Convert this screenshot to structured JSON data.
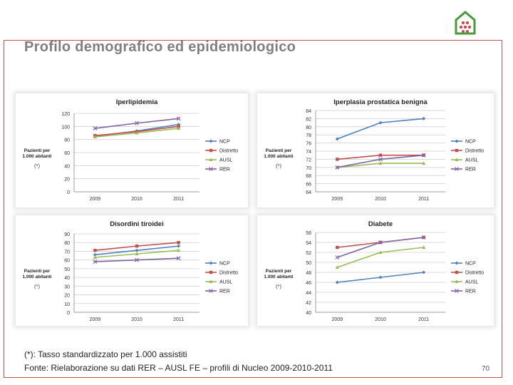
{
  "page": {
    "title": "Profilo demografico ed epidemiologico",
    "footnote1": "(*): Tasso standardizzato per 1.000 assistiti",
    "footnote2": "Fonte: Rielaborazione su dati RER – AUSL FE – profili di Nucleo 2009-2010-2011",
    "page_number": "70"
  },
  "colors": {
    "NCP": "#4f81bd",
    "Distretto": "#c0504d",
    "AUSL": "#9bbb59",
    "RER": "#8064a2",
    "frame": "#c0504d"
  },
  "logo": {
    "icon": "house-logo-icon"
  },
  "chart_data": [
    {
      "type": "line",
      "title": "Iperlipidemia",
      "ylabel": "Pazienti per 1.000 abitanti",
      "ynote": "(*)",
      "categories": [
        "2009",
        "2010",
        "2011"
      ],
      "ylim": [
        0,
        120
      ],
      "yticks": [
        0,
        20,
        40,
        60,
        80,
        100,
        120
      ],
      "series": [
        {
          "name": "NCP",
          "values": [
            85,
            93,
            103
          ]
        },
        {
          "name": "Distretto",
          "values": [
            86,
            92,
            100
          ]
        },
        {
          "name": "AUSL",
          "values": [
            84,
            90,
            97
          ]
        },
        {
          "name": "RER",
          "values": [
            97,
            105,
            112
          ]
        }
      ]
    },
    {
      "type": "line",
      "title": "Iperplasia prostatica benigna",
      "ylabel": "Pazienti per 1.000 abitanti",
      "ynote": "(*)",
      "categories": [
        "2009",
        "2010",
        "2011"
      ],
      "ylim": [
        64,
        84
      ],
      "yticks": [
        64,
        66,
        68,
        70,
        72,
        74,
        76,
        78,
        80,
        82,
        84
      ],
      "series": [
        {
          "name": "NCP",
          "values": [
            77,
            81,
            82
          ]
        },
        {
          "name": "Distretto",
          "values": [
            72,
            73,
            73
          ]
        },
        {
          "name": "AUSL",
          "values": [
            70,
            71,
            71
          ]
        },
        {
          "name": "RER",
          "values": [
            70,
            72,
            73
          ]
        }
      ]
    },
    {
      "type": "line",
      "title": "Disordini tiroidei",
      "ylabel": "Pazienti per 1.000 abitanti",
      "ynote": "(*)",
      "categories": [
        "2009",
        "2010",
        "2011"
      ],
      "ylim": [
        0,
        90
      ],
      "yticks": [
        0,
        10,
        20,
        30,
        40,
        50,
        60,
        70,
        80,
        90
      ],
      "series": [
        {
          "name": "NCP",
          "values": [
            66,
            71,
            76
          ]
        },
        {
          "name": "Distretto",
          "values": [
            71,
            76,
            80
          ]
        },
        {
          "name": "AUSL",
          "values": [
            63,
            67,
            71
          ]
        },
        {
          "name": "RER",
          "values": [
            58,
            60,
            62
          ]
        }
      ]
    },
    {
      "type": "line",
      "title": "Diabete",
      "ylabel": "Pazienti per 1.000 abitanti",
      "ynote": "(*)",
      "categories": [
        "2009",
        "2010",
        "2011"
      ],
      "ylim": [
        40,
        56
      ],
      "yticks": [
        40,
        42,
        44,
        46,
        48,
        50,
        52,
        54,
        56
      ],
      "series": [
        {
          "name": "NCP",
          "values": [
            46,
            47,
            48
          ]
        },
        {
          "name": "Distretto",
          "values": [
            53,
            54,
            55
          ]
        },
        {
          "name": "AUSL",
          "values": [
            49,
            52,
            53
          ]
        },
        {
          "name": "RER",
          "values": [
            51,
            54,
            55
          ]
        }
      ]
    }
  ]
}
